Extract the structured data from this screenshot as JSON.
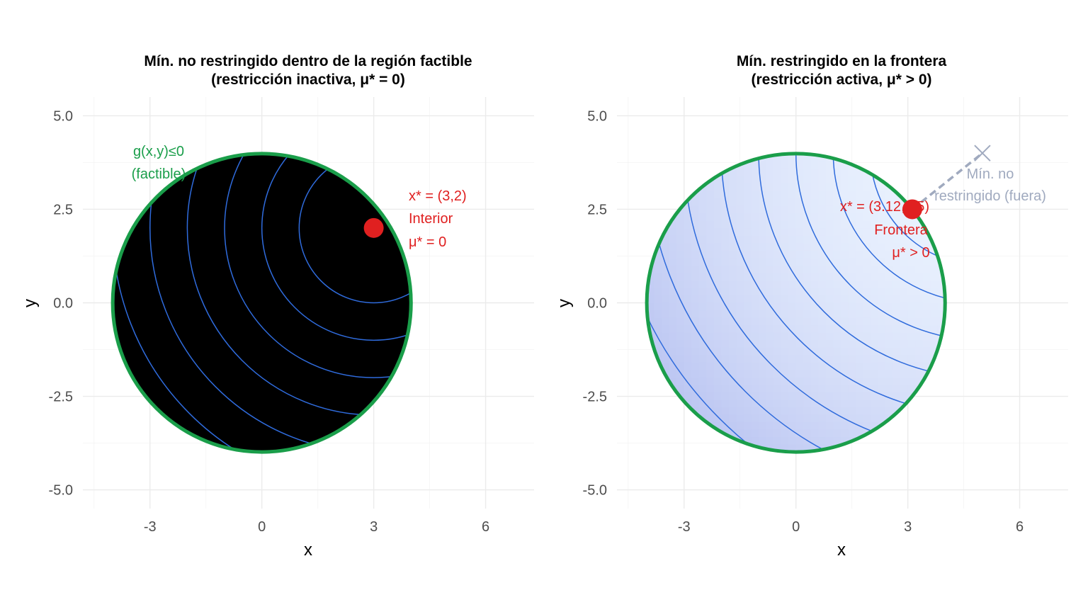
{
  "chart_data": [
    {
      "type": "contour",
      "title": "Mín. no restringido dentro de la región factible",
      "subtitle": "(restricción inactiva, μ* = 0)",
      "xlabel": "x",
      "ylabel": "y",
      "xlim": [
        -4.8,
        7.3
      ],
      "ylim": [
        -5.5,
        5.5
      ],
      "x_ticks": [
        "-3",
        "0",
        "3",
        "6"
      ],
      "y_ticks": [
        "5.0",
        "2.5",
        "0.0",
        "-2.5",
        "-5.0"
      ],
      "grid": true,
      "objective_min": [
        3,
        2
      ],
      "feasible_region": {
        "center": [
          0,
          0
        ],
        "radius": 4,
        "color": "#1a9e4a"
      },
      "contour_levels": [
        4,
        9,
        16,
        25,
        36,
        49,
        64
      ],
      "contour_color": "#2f6bdc",
      "fill_light": "#eaf2fe",
      "fill_dark": "#bcc6f2",
      "optimum": {
        "x": 3,
        "y": 2,
        "color": "#e02020"
      },
      "annotations": {
        "constraint_line1": "g(x,y)≤0",
        "constraint_line2": "(factible)",
        "point_line1": "x* = (3,2)",
        "point_line2": "Interior",
        "point_line3": "μ* = 0"
      }
    },
    {
      "type": "contour",
      "title": "Mín. restringido en la frontera",
      "subtitle": "(restricción activa, μ* > 0)",
      "xlabel": "x",
      "ylabel": "y",
      "xlim": [
        -4.8,
        7.3
      ],
      "ylim": [
        -5.5,
        5.5
      ],
      "x_ticks": [
        "-3",
        "0",
        "3",
        "6"
      ],
      "y_ticks": [
        "5.0",
        "2.5",
        "0.0",
        "-2.5",
        "-5.0"
      ],
      "grid": true,
      "objective_min": [
        5,
        4
      ],
      "feasible_region": {
        "center": [
          0,
          0
        ],
        "radius": 4,
        "color": "#1a9e4a"
      },
      "contour_levels": [
        4,
        9,
        16,
        25,
        36,
        49,
        64,
        81,
        100
      ],
      "contour_color": "#2f6bdc",
      "fill_light": "#eaf2fe",
      "fill_dark": "#bcc6f2",
      "optimum": {
        "x": 3.12,
        "y": 2.5,
        "color": "#e02020"
      },
      "unconstrained_marker": {
        "x": 5,
        "y": 4,
        "color": "#a0aabf"
      },
      "annotations": {
        "point_line1": "x* = (3.12,2.5)",
        "point_line2": "Frontera",
        "point_line3": "μ* > 0",
        "outside_line1": "Mín. no",
        "outside_line2": "restringido (fuera)"
      }
    }
  ]
}
